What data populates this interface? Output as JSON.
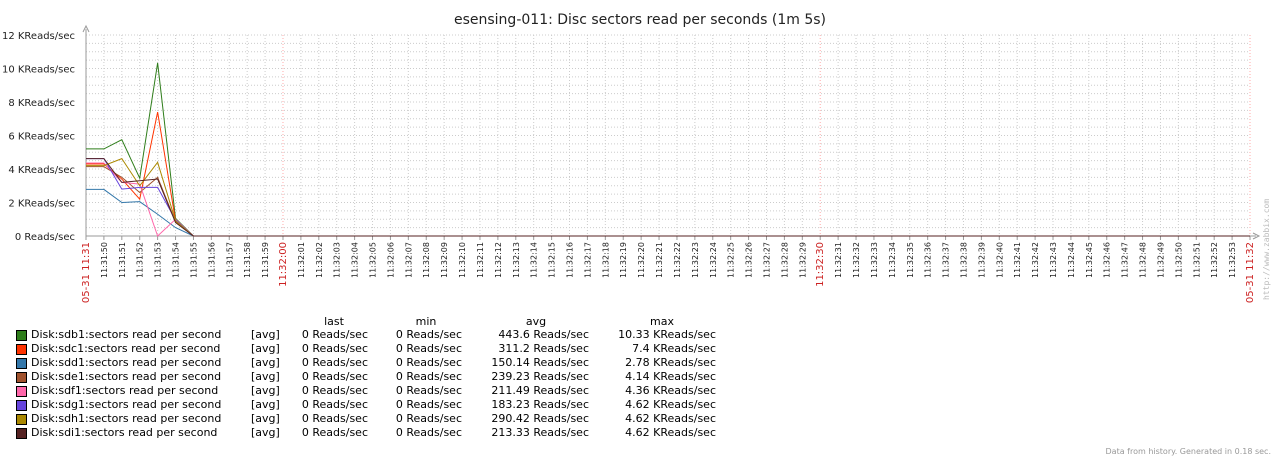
{
  "chart_data": {
    "type": "line",
    "title": "esensing-011: Disc sectors read per seconds (1m 5s)",
    "y_ticks": [
      "0 Reads/sec",
      "2 KReads/sec",
      "4 KReads/sec",
      "6 KReads/sec",
      "8 KReads/sec",
      "10 KReads/sec",
      "12 KReads/sec"
    ],
    "ylim": [
      0,
      12000
    ],
    "x_ticks": [
      "05-31 11:31",
      "11:31:50",
      "11:31:51",
      "11:31:52",
      "11:31:53",
      "11:31:54",
      "11:31:55",
      "11:31:56",
      "11:31:57",
      "11:31:58",
      "11:31:59",
      "11:32:00",
      "11:32:01",
      "11:32:02",
      "11:32:03",
      "11:32:04",
      "11:32:05",
      "11:32:06",
      "11:32:07",
      "11:32:08",
      "11:32:09",
      "11:32:10",
      "11:32:11",
      "11:32:12",
      "11:32:13",
      "11:32:14",
      "11:32:15",
      "11:32:16",
      "11:32:17",
      "11:32:18",
      "11:32:19",
      "11:32:20",
      "11:32:21",
      "11:32:22",
      "11:32:23",
      "11:32:24",
      "11:32:25",
      "11:32:26",
      "11:32:27",
      "11:32:28",
      "11:32:29",
      "11:32:30",
      "11:32:31",
      "11:32:32",
      "11:32:33",
      "11:32:34",
      "11:32:35",
      "11:32:36",
      "11:32:37",
      "11:32:38",
      "11:32:39",
      "11:32:40",
      "11:32:41",
      "11:32:42",
      "11:32:43",
      "11:32:44",
      "11:32:45",
      "11:32:46",
      "11:32:47",
      "11:32:48",
      "11:32:49",
      "11:32:50",
      "11:32:51",
      "11:32:52",
      "11:32:53",
      "05-31 11:32"
    ],
    "highlight_ticks": [
      "05-31 11:31",
      "11:32:00",
      "11:32:30",
      "05-31 11:32"
    ],
    "x": [
      "11:31:49",
      "11:31:50",
      "11:31:51",
      "11:31:52",
      "11:31:53",
      "11:31:54",
      "11:31:55"
    ],
    "grid": true,
    "series": [
      {
        "name": "Disk:sdb1:sectors read per second",
        "color": "#2e7d1a",
        "values": [
          5200,
          5200,
          5750,
          3450,
          10330,
          1050,
          0
        ]
      },
      {
        "name": "Disk:sdc1:sectors read per second",
        "color": "#ff3300",
        "values": [
          4300,
          4300,
          3400,
          2200,
          7400,
          900,
          0
        ]
      },
      {
        "name": "Disk:sdd1:sectors read per second",
        "color": "#3377aa",
        "values": [
          2780,
          2780,
          2000,
          2050,
          1300,
          500,
          0
        ]
      },
      {
        "name": "Disk:sde1:sectors read per second",
        "color": "#a0522d",
        "values": [
          4140,
          4140,
          3500,
          2600,
          3500,
          850,
          0
        ]
      },
      {
        "name": "Disk:sdf1:sectors read per second",
        "color": "#ff66aa",
        "values": [
          4360,
          4360,
          3200,
          3100,
          0,
          1000,
          0
        ]
      },
      {
        "name": "Disk:sdg1:sectors read per second",
        "color": "#6644dd",
        "values": [
          4620,
          4620,
          2800,
          2900,
          2900,
          950,
          0
        ]
      },
      {
        "name": "Disk:sdh1:sectors read per second",
        "color": "#aa8800",
        "values": [
          4200,
          4200,
          4620,
          3000,
          4400,
          900,
          0
        ]
      },
      {
        "name": "Disk:sdi1:sectors read per second",
        "color": "#552222",
        "values": [
          4620,
          4620,
          3200,
          3300,
          3400,
          800,
          0
        ]
      }
    ]
  },
  "legend": {
    "headers": {
      "last": "last",
      "min": "min",
      "avg": "avg",
      "max": "max"
    },
    "avg_tag": "[avg]",
    "rows": [
      {
        "name": "Disk:sdb1:sectors read per second",
        "last": "0 Reads/sec",
        "min": "0 Reads/sec",
        "avg": "443.6 Reads/sec",
        "max": "10.33 KReads/sec",
        "color": "#2e7d1a"
      },
      {
        "name": "Disk:sdc1:sectors read per second",
        "last": "0 Reads/sec",
        "min": "0 Reads/sec",
        "avg": "311.2 Reads/sec",
        "max": "7.4 KReads/sec",
        "color": "#ff3300"
      },
      {
        "name": "Disk:sdd1:sectors read per second",
        "last": "0 Reads/sec",
        "min": "0 Reads/sec",
        "avg": "150.14 Reads/sec",
        "max": "2.78 KReads/sec",
        "color": "#3377aa"
      },
      {
        "name": "Disk:sde1:sectors read per second",
        "last": "0 Reads/sec",
        "min": "0 Reads/sec",
        "avg": "239.23 Reads/sec",
        "max": "4.14 KReads/sec",
        "color": "#a0522d"
      },
      {
        "name": "Disk:sdf1:sectors read per second",
        "last": "0 Reads/sec",
        "min": "0 Reads/sec",
        "avg": "211.49 Reads/sec",
        "max": "4.36 KReads/sec",
        "color": "#ff66aa"
      },
      {
        "name": "Disk:sdg1:sectors read per second",
        "last": "0 Reads/sec",
        "min": "0 Reads/sec",
        "avg": "183.23 Reads/sec",
        "max": "4.62 KReads/sec",
        "color": "#6644dd"
      },
      {
        "name": "Disk:sdh1:sectors read per second",
        "last": "0 Reads/sec",
        "min": "0 Reads/sec",
        "avg": "290.42 Reads/sec",
        "max": "4.62 KReads/sec",
        "color": "#aa8800"
      },
      {
        "name": "Disk:sdi1:sectors read per second",
        "last": "0 Reads/sec",
        "min": "0 Reads/sec",
        "avg": "213.33 Reads/sec",
        "max": "4.62 KReads/sec",
        "color": "#552222"
      }
    ]
  },
  "footer": "Data from history. Generated in 0.18 sec.",
  "watermark": "http://www.zabbix.com"
}
